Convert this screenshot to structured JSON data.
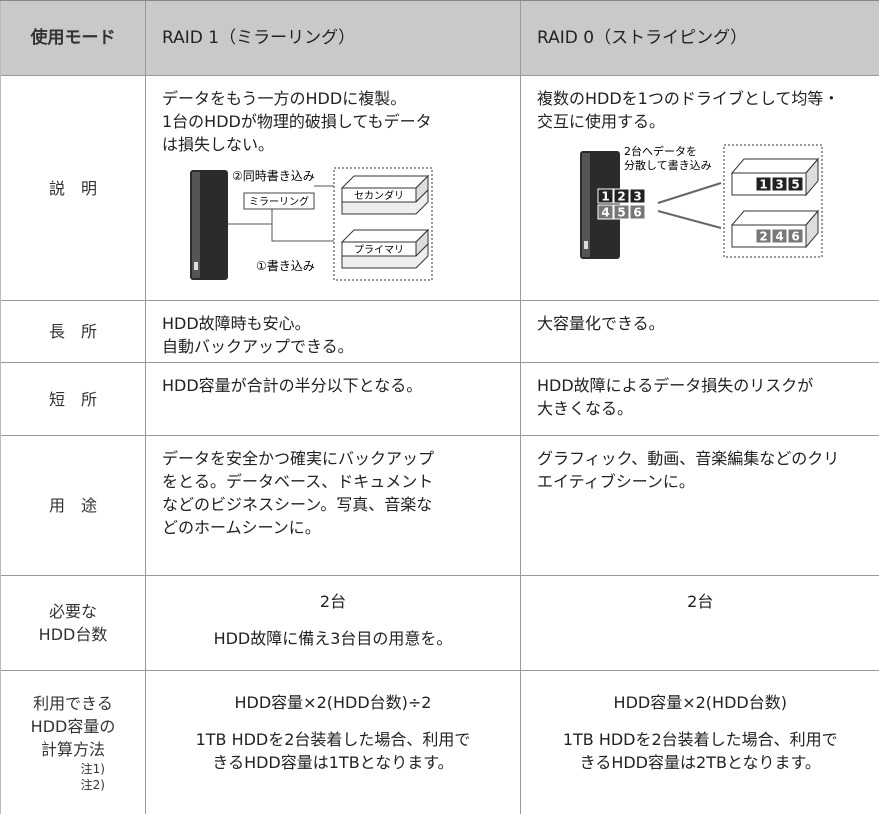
{
  "table": {
    "header": [
      "使用モード",
      "RAID 1（ミラーリング）",
      "RAID 0（ストライピング）"
    ],
    "rows": [
      {
        "label": [
          "説　明"
        ],
        "cells": [
          [
            [
              "データをもう一方のHDDに複製。",
              "1台のHDDが物理的破損してもデータ",
              "は損失しない。"
            ]
          ],
          [
            [
              "複数のHDDを1つのドライブとして均等・",
              "交互に使用する。"
            ]
          ]
        ]
      },
      {
        "label": [
          "長　所"
        ],
        "cells": [
          [
            [
              "HDD故障時も安心。",
              "自動バックアップできる。"
            ]
          ],
          [
            [
              "大容量化できる。"
            ]
          ]
        ]
      },
      {
        "label": [
          "短　所"
        ],
        "cells": [
          [
            [
              "HDD容量が合計の半分以下となる。"
            ]
          ],
          [
            [
              "HDD故障によるデータ損失のリスクが",
              "大きくなる。"
            ]
          ]
        ]
      },
      {
        "label": [
          "用　途"
        ],
        "cells": [
          [
            [
              "データを安全かつ確実にバックアップ",
              "をとる。データベース、ドキュメント",
              "などのビジネスシーン。写真、音楽な",
              "どのホームシーンに。"
            ]
          ],
          [
            [
              "グラフィック、動画、音楽編集などのクリ",
              "エイティブシーンに。"
            ]
          ]
        ]
      },
      {
        "label": [
          "必要な",
          "HDD台数"
        ],
        "cells": [
          [
            [
              "2台"
            ],
            [
              "HDD故障に備え3台目の用意を。"
            ]
          ],
          [
            [
              "2台"
            ]
          ]
        ]
      },
      {
        "label": [
          "利用できる",
          "HDD容量の",
          "計算方法",
          "注1)",
          "注2)"
        ],
        "cells": [
          [
            [
              "HDD容量×2(HDD台数)÷2"
            ],
            [
              "1TB HDDを2台装着した場合、利用で",
              "きるHDD容量は1TBとなります。"
            ]
          ],
          [
            [
              "HDD容量×2(HDD台数)"
            ],
            [
              "1TB HDDを2台装着した場合、利用で",
              "きるHDD容量は2TBとなります。"
            ]
          ]
        ]
      }
    ]
  },
  "diagrams": {
    "raid1": {
      "simultaneous": "②同時書き込み",
      "mirroring": "ミラーリング",
      "secondary": "セカンダリ",
      "primary": "プライマリ",
      "write": "①書き込み"
    },
    "raid0": {
      "caption": [
        "2台へデータを",
        "分散して書き込み"
      ],
      "source_blocks": [
        "1",
        "2",
        "3",
        "4",
        "5",
        "6"
      ],
      "upper_blocks": [
        "1",
        "3",
        "5"
      ],
      "lower_blocks": [
        "2",
        "4",
        "6"
      ]
    }
  }
}
